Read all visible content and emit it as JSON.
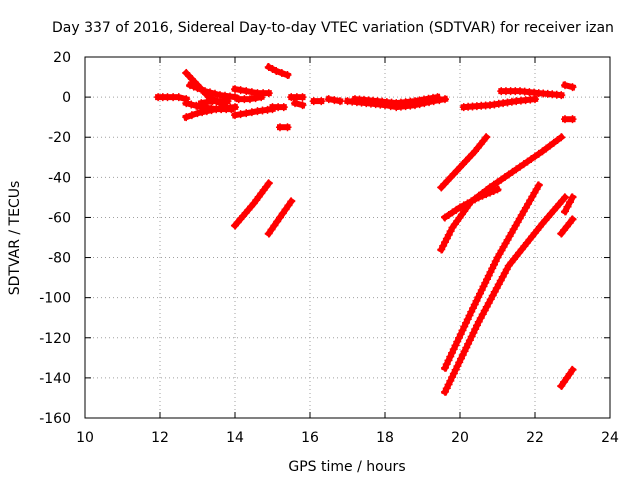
{
  "chart_data": {
    "type": "scatter",
    "title": "Day 337 of 2016, Sidereal Day-to-day VTEC variation (SDTVAR) for receiver izan",
    "xlabel": "GPS time / hours",
    "ylabel": "SDTVAR / TECUs",
    "xlim": [
      10,
      24
    ],
    "ylim": [
      -160,
      20
    ],
    "xticks": [
      10,
      12,
      14,
      16,
      18,
      20,
      22,
      24
    ],
    "yticks": [
      20,
      0,
      -20,
      -40,
      -60,
      -80,
      -100,
      -120,
      -140,
      -160
    ],
    "grid": true,
    "marker": "plus",
    "color": "#ff0000",
    "legend": "none",
    "series": [
      {
        "x": [
          11.95,
          12.2,
          12.5,
          12.7
        ],
        "y": [
          0,
          0,
          0,
          -1
        ]
      },
      {
        "x": [
          12.7,
          13.0,
          13.3,
          13.7
        ],
        "y": [
          12,
          6,
          0,
          -4
        ]
      },
      {
        "x": [
          12.7,
          13.1,
          13.5,
          13.9
        ],
        "y": [
          -3,
          -5,
          -6,
          -6
        ]
      },
      {
        "x": [
          12.7,
          13.0,
          13.5,
          14.0
        ],
        "y": [
          -10,
          -8,
          -6,
          -5
        ]
      },
      {
        "x": [
          12.8,
          13.2,
          13.6,
          14.0
        ],
        "y": [
          6,
          3,
          1,
          0
        ]
      },
      {
        "x": [
          13.1,
          13.4,
          13.8
        ],
        "y": [
          -3,
          -2,
          -2
        ]
      },
      {
        "x": [
          14.0,
          14.3,
          14.6,
          14.9
        ],
        "y": [
          4,
          3,
          2,
          2
        ]
      },
      {
        "x": [
          14.0,
          14.3,
          14.6,
          15.0
        ],
        "y": [
          -9,
          -8,
          -7,
          -6
        ]
      },
      {
        "x": [
          14.1,
          14.4,
          14.7
        ],
        "y": [
          -1,
          -1,
          0
        ]
      },
      {
        "x": [
          14.9,
          15.1,
          15.4
        ],
        "y": [
          15,
          13,
          11
        ]
      },
      {
        "x": [
          15.0,
          15.3
        ],
        "y": [
          -5,
          -5
        ]
      },
      {
        "x": [
          15.2,
          15.4
        ],
        "y": [
          -15,
          -15
        ]
      },
      {
        "x": [
          15.6,
          15.8
        ],
        "y": [
          -3,
          -4
        ]
      },
      {
        "x": [
          15.5,
          15.8
        ],
        "y": [
          0,
          0
        ]
      },
      {
        "x": [
          16.1,
          16.3
        ],
        "y": [
          -2,
          -2
        ]
      },
      {
        "x": [
          16.5,
          16.8
        ],
        "y": [
          -1,
          -2
        ]
      },
      {
        "x": [
          17.0,
          17.5,
          18.0,
          18.3,
          18.8,
          19.3,
          19.6
        ],
        "y": [
          -2,
          -3,
          -4,
          -5,
          -4,
          -2,
          -1
        ]
      },
      {
        "x": [
          17.2,
          17.8,
          18.3,
          18.8,
          19.4
        ],
        "y": [
          -1,
          -2,
          -3,
          -2,
          0
        ]
      },
      {
        "x": [
          14.0,
          14.5,
          14.9
        ],
        "y": [
          -64,
          -53,
          -43
        ]
      },
      {
        "x": [
          14.9,
          15.2,
          15.5
        ],
        "y": [
          -68,
          -60,
          -52
        ]
      },
      {
        "x": [
          19.5,
          20.0,
          20.4,
          20.7
        ],
        "y": [
          -45,
          -35,
          -27,
          -20
        ]
      },
      {
        "x": [
          19.6,
          20.0,
          20.5,
          21.0
        ],
        "y": [
          -60,
          -55,
          -50,
          -46
        ]
      },
      {
        "x": [
          19.5,
          19.8,
          20.3,
          20.8
        ],
        "y": [
          -76,
          -65,
          -52,
          -45
        ]
      },
      {
        "x": [
          20.8,
          21.5,
          22.2,
          22.7
        ],
        "y": [
          -45,
          -36,
          -27,
          -20
        ]
      },
      {
        "x": [
          19.6,
          20.3,
          21.0,
          21.7,
          22.1
        ],
        "y": [
          -135,
          -107,
          -80,
          -57,
          -44
        ]
      },
      {
        "x": [
          19.6,
          20.5,
          21.3,
          22.2,
          22.8
        ],
        "y": [
          -147,
          -112,
          -84,
          -63,
          -50
        ]
      },
      {
        "x": [
          20.1,
          20.8,
          21.5,
          22.0
        ],
        "y": [
          -5,
          -4,
          -2,
          -1
        ]
      },
      {
        "x": [
          21.1,
          21.6,
          22.1,
          22.7
        ],
        "y": [
          3,
          3,
          2,
          1
        ]
      },
      {
        "x": [
          22.8,
          23.0
        ],
        "y": [
          6,
          5
        ]
      },
      {
        "x": [
          22.8,
          23.0
        ],
        "y": [
          -11,
          -11
        ]
      },
      {
        "x": [
          22.7,
          23.0
        ],
        "y": [
          -68,
          -61
        ]
      },
      {
        "x": [
          22.8,
          23.0
        ],
        "y": [
          -57,
          -50
        ]
      },
      {
        "x": [
          22.7,
          23.0
        ],
        "y": [
          -144,
          -136
        ]
      }
    ]
  }
}
